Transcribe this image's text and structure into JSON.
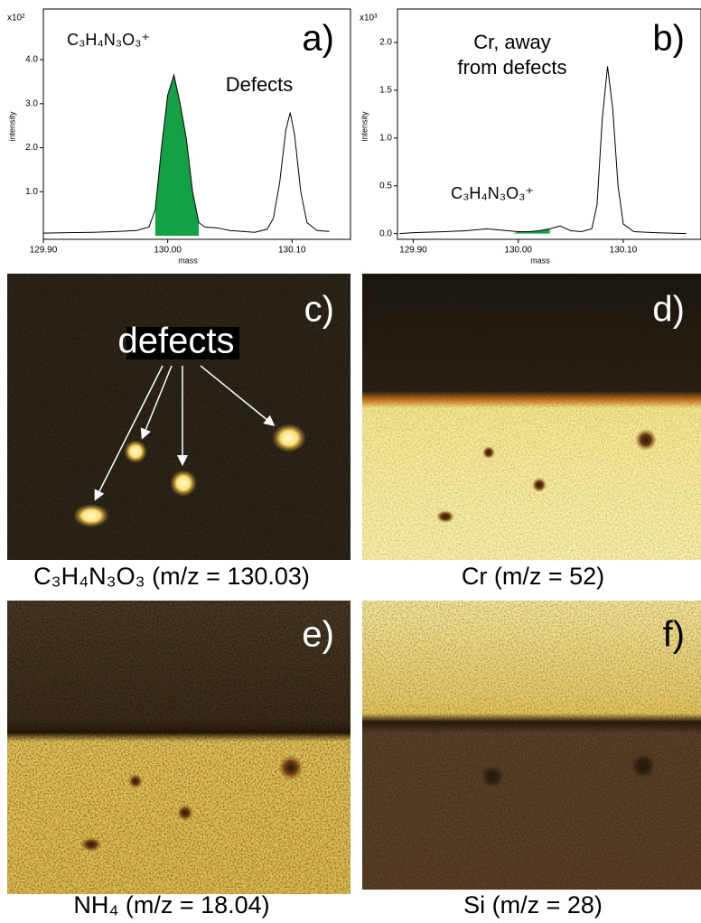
{
  "chart_data": [
    {
      "type": "line",
      "panel": "a)",
      "annotation": "Defects",
      "compound": "C₃H₄N₃O₃⁺",
      "multiplier": "x10²",
      "xlabel": "mass",
      "ylabel": "intensity",
      "x": [
        129.9,
        129.92,
        129.94,
        129.96,
        129.975,
        129.985,
        129.99,
        129.995,
        130.0,
        130.005,
        130.01,
        130.015,
        130.02,
        130.025,
        130.03,
        130.04,
        130.05,
        130.06,
        130.07,
        130.08,
        130.085,
        130.09,
        130.095,
        130.0985,
        130.102,
        130.107,
        130.112,
        130.12,
        130.13
      ],
      "series": [
        {
          "color": "#000000",
          "values": [
            0.06,
            0.07,
            0.08,
            0.1,
            0.12,
            0.2,
            0.6,
            2.0,
            3.2,
            3.65,
            3.0,
            2.2,
            1.0,
            0.3,
            0.2,
            0.18,
            0.12,
            0.1,
            0.08,
            0.15,
            0.4,
            1.2,
            2.4,
            2.8,
            2.3,
            1.0,
            0.3,
            0.12,
            0.1
          ],
          "fill_xrange": [
            129.99,
            130.025
          ],
          "fill_color": "#14a044"
        }
      ],
      "xlim": [
        129.9,
        130.147
      ],
      "ylim": [
        -0.08,
        5.15
      ],
      "xticks": [
        {
          "value": 129.9,
          "label": "129.90"
        },
        {
          "value": 130.0,
          "label": "130.00"
        },
        {
          "value": 130.1,
          "label": "130.10"
        }
      ],
      "yticks": [
        {
          "value": 1,
          "label": "1.0"
        },
        {
          "value": 2,
          "label": "2.0"
        },
        {
          "value": 3,
          "label": "3.0"
        },
        {
          "value": 4,
          "label": "4.0"
        }
      ]
    },
    {
      "type": "line",
      "panel": "b)",
      "annotation": [
        "Cr, away",
        "from defects"
      ],
      "compound": "C₃H₄N₃O₃⁺",
      "multiplier": "x10³",
      "xlabel": "mass",
      "ylabel": "intensity",
      "x": [
        129.887,
        129.9,
        129.93,
        129.95,
        129.97,
        129.99,
        130.0,
        130.01,
        130.02,
        130.03,
        130.04,
        130.05,
        130.06,
        130.07,
        130.075,
        130.08,
        130.085,
        130.09,
        130.095,
        130.1,
        130.11,
        130.13,
        130.16
      ],
      "series": [
        {
          "color": "#000000",
          "values": [
            0.0,
            0.01,
            0.02,
            0.03,
            0.05,
            0.03,
            0.02,
            0.02,
            0.03,
            0.05,
            0.08,
            0.03,
            0.02,
            0.05,
            0.3,
            1.2,
            1.75,
            1.3,
            0.5,
            0.1,
            0.02,
            0.01,
            0.0
          ],
          "fill_xrange": [
            129.995,
            130.03
          ],
          "fill_color": "#14a044"
        }
      ],
      "xlim": [
        129.885,
        130.174
      ],
      "ylim": [
        -0.06,
        2.35
      ],
      "xticks": [
        {
          "value": 129.9,
          "label": "129.90"
        },
        {
          "value": 130.0,
          "label": "130.00"
        },
        {
          "value": 130.1,
          "label": "130.10"
        }
      ],
      "yticks": [
        {
          "value": 0,
          "label": "0.0"
        },
        0.5,
        {
          "value": 1,
          "label": "1.0"
        },
        1.5,
        {
          "value": 2,
          "label": "2.0"
        }
      ]
    }
  ],
  "images": [
    {
      "label": "c)",
      "caption": "C₃H₄N₃O₃ (m/z = 130.03)",
      "annotation": "defects"
    },
    {
      "label": "d)",
      "caption": "Cr (m/z = 52)"
    },
    {
      "label": "e)",
      "caption": "NH₄ (m/z = 18.04)"
    },
    {
      "label": "f)",
      "caption": "Si (m/z = 28)"
    }
  ]
}
